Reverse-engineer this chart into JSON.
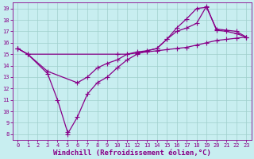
{
  "xlabel": "Windchill (Refroidissement éolien,°C)",
  "line1_x": [
    0,
    1,
    10,
    11,
    12,
    13,
    14,
    15,
    16,
    17,
    18,
    19,
    20,
    21,
    22,
    23
  ],
  "line1_y": [
    15.5,
    15.0,
    15.0,
    15.0,
    15.1,
    15.2,
    15.3,
    15.4,
    15.5,
    15.6,
    15.8,
    16.0,
    16.2,
    16.3,
    16.4,
    16.5
  ],
  "line2_x": [
    0,
    1,
    3,
    4,
    5,
    5,
    6,
    7,
    8,
    9,
    10,
    11,
    12,
    13,
    14,
    15,
    16,
    17,
    18,
    19,
    20,
    21,
    22,
    23
  ],
  "line2_y": [
    15.5,
    15.0,
    13.3,
    11.0,
    8.2,
    8.0,
    9.5,
    11.5,
    12.5,
    13.0,
    13.8,
    14.5,
    15.0,
    15.3,
    15.5,
    16.3,
    17.3,
    18.1,
    19.0,
    19.1,
    17.2,
    17.1,
    17.0,
    16.5
  ],
  "line3_x": [
    0,
    1,
    3,
    6,
    7,
    8,
    9,
    10,
    11,
    12,
    13,
    14,
    15,
    16,
    17,
    18,
    19,
    20,
    21,
    22,
    23
  ],
  "line3_y": [
    15.5,
    15.0,
    13.5,
    12.5,
    13.0,
    13.8,
    14.2,
    14.5,
    15.0,
    15.2,
    15.3,
    15.5,
    16.3,
    17.0,
    17.3,
    17.7,
    19.2,
    17.1,
    17.0,
    16.8,
    16.5
  ],
  "xlim": [
    -0.5,
    23.5
  ],
  "ylim": [
    7.5,
    19.5
  ],
  "xticks": [
    0,
    1,
    2,
    3,
    4,
    5,
    6,
    7,
    8,
    9,
    10,
    11,
    12,
    13,
    14,
    15,
    16,
    17,
    18,
    19,
    20,
    21,
    22,
    23
  ],
  "yticks": [
    8,
    9,
    10,
    11,
    12,
    13,
    14,
    15,
    16,
    17,
    18,
    19
  ],
  "line_color": "#880088",
  "marker": "+",
  "markersize": 4,
  "linewidth": 0.9,
  "bg_color": "#c8eef0",
  "grid_color": "#9fcfcc",
  "tick_fontsize": 5.0,
  "xlabel_fontsize": 6.5
}
